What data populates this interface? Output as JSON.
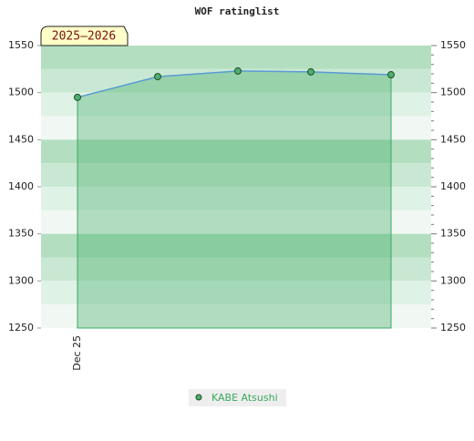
{
  "chart_data": {
    "type": "line",
    "title": "WOF ratinglist",
    "annotation": "2025–2026",
    "categories": [
      "Dec 25",
      null,
      null,
      null,
      null
    ],
    "series": [
      {
        "name": "KABE Atsushi",
        "color": "#5b9bd5",
        "values": [
          1495,
          1517,
          1523,
          1522,
          1519
        ]
      }
    ],
    "ylim": [
      1250,
      1550
    ],
    "yticks": [
      1250,
      1300,
      1350,
      1400,
      1450,
      1500,
      1550
    ],
    "y2lim": [
      1250,
      1550
    ],
    "y2ticks": [
      1250,
      1300,
      1350,
      1400,
      1450,
      1500,
      1550
    ],
    "area_color": "#3aa860",
    "legend": "bottom"
  }
}
